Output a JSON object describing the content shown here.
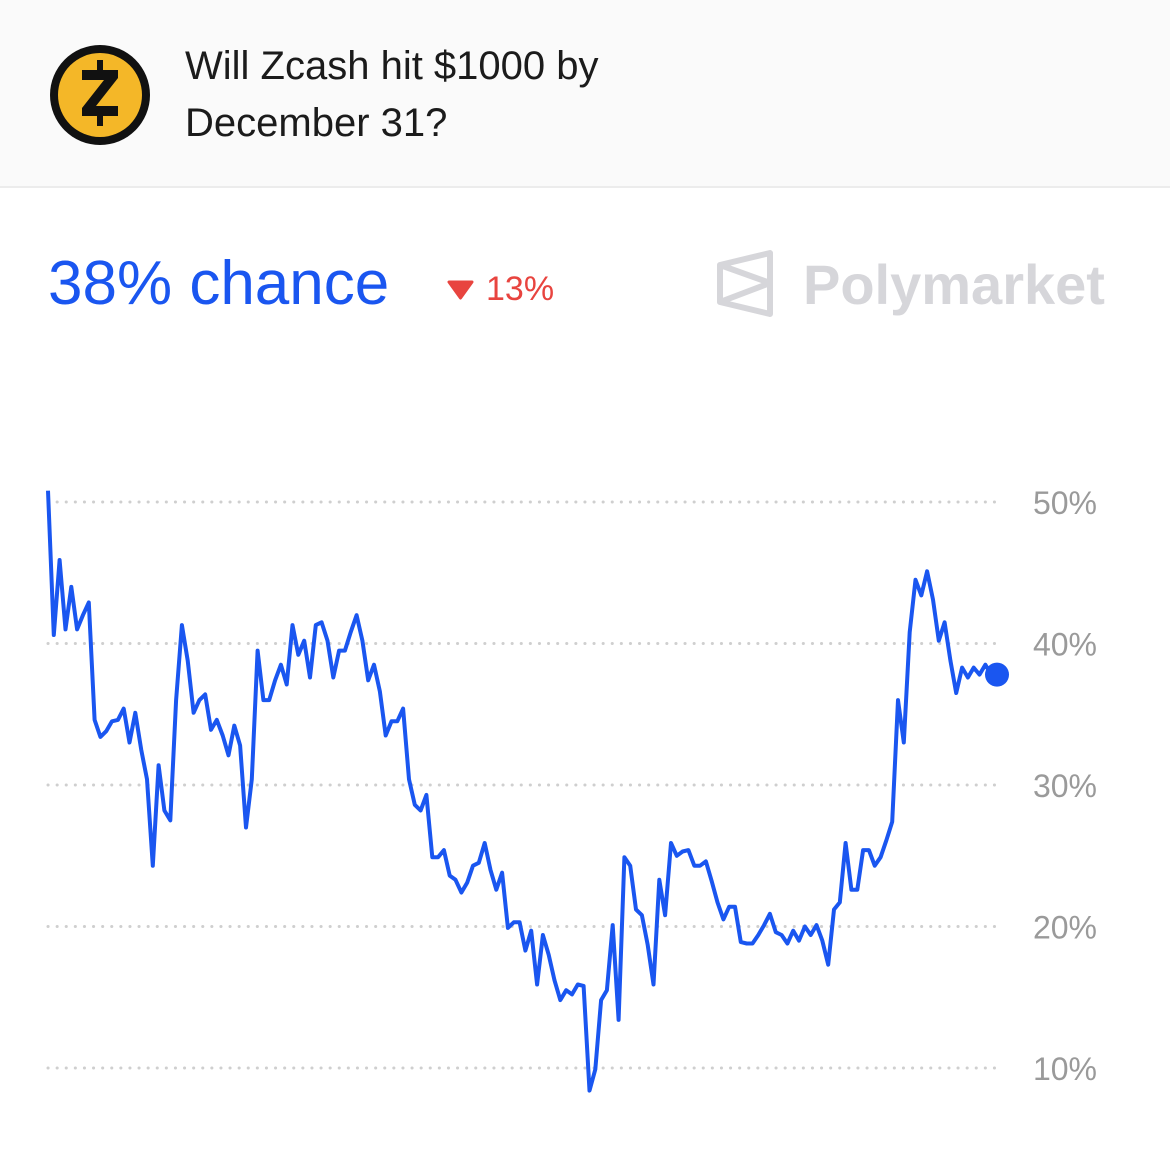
{
  "chart_data": {
    "type": "line",
    "title": "Will Zcash hit $1000 by December 31?",
    "headline": "38% chance",
    "change": "13%",
    "brand": "Polymarket",
    "series": [
      {
        "color": "#1a56f0",
        "values": [
          50.8,
          40.6,
          45.9,
          41.0,
          44.0,
          41.0,
          42.0,
          42.9,
          34.6,
          33.4,
          33.8,
          34.5,
          34.6,
          35.4,
          33.0,
          35.1,
          32.5,
          30.4,
          24.3,
          31.4,
          28.2,
          27.5,
          36.0,
          41.3,
          38.8,
          35.1,
          36.0,
          36.4,
          33.9,
          34.6,
          33.5,
          32.1,
          34.2,
          32.8,
          27.0,
          30.4,
          39.5,
          36.0,
          36.0,
          37.4,
          38.5,
          37.1,
          41.3,
          39.2,
          40.2,
          37.6,
          41.3,
          41.5,
          40.2,
          37.6,
          39.5,
          39.5,
          40.8,
          42.0,
          40.2,
          37.4,
          38.5,
          36.6,
          33.5,
          34.5,
          34.5,
          35.4,
          30.4,
          28.6,
          28.2,
          29.3,
          24.9,
          24.9,
          25.4,
          23.6,
          23.3,
          22.4,
          23.1,
          24.3,
          24.5,
          25.9,
          24.0,
          22.6,
          23.8,
          19.9,
          20.3,
          20.3,
          18.3,
          19.7,
          15.9,
          19.4,
          18.0,
          16.2,
          14.8,
          15.5,
          15.2,
          15.9,
          15.8,
          8.4,
          9.9,
          14.8,
          15.5,
          20.1,
          13.4,
          24.9,
          24.3,
          21.2,
          20.8,
          18.7,
          15.9,
          23.3,
          20.8,
          25.9,
          25.0,
          25.3,
          25.4,
          24.3,
          24.3,
          24.6,
          23.2,
          21.7,
          20.5,
          21.4,
          21.4,
          18.9,
          18.8,
          18.8,
          19.4,
          20.1,
          20.9,
          19.6,
          19.4,
          18.8,
          19.7,
          19.0,
          20.0,
          19.4,
          20.1,
          19.0,
          17.3,
          21.2,
          21.7,
          25.9,
          22.6,
          22.6,
          25.4,
          25.4,
          24.3,
          24.9,
          26.1,
          27.4,
          36.0,
          33.0,
          40.8,
          44.5,
          43.4,
          45.1,
          43.1,
          40.2,
          41.5,
          38.8,
          36.5,
          38.3,
          37.6,
          38.3,
          37.8,
          38.5,
          37.8,
          37.8
        ]
      }
    ],
    "ylim": [
      8,
      52
    ],
    "yticks": [
      {
        "value": 10,
        "label": "10%"
      },
      {
        "value": 20,
        "label": "20%"
      },
      {
        "value": 30,
        "label": "30%"
      },
      {
        "value": 40,
        "label": "40%"
      },
      {
        "value": 50,
        "label": "50%"
      }
    ],
    "grid": true
  }
}
